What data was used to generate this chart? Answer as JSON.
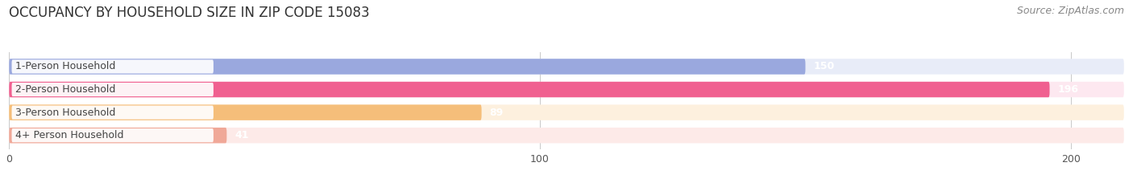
{
  "title": "OCCUPANCY BY HOUSEHOLD SIZE IN ZIP CODE 15083",
  "source": "Source: ZipAtlas.com",
  "categories": [
    "1-Person Household",
    "2-Person Household",
    "3-Person Household",
    "4+ Person Household"
  ],
  "values": [
    150,
    196,
    89,
    41
  ],
  "bar_colors": [
    "#9aa8de",
    "#f06090",
    "#f5be7a",
    "#f0a898"
  ],
  "bar_bg_colors": [
    "#e8ecf8",
    "#fde8f0",
    "#fdf0de",
    "#fdeae8"
  ],
  "xlim": [
    0,
    210
  ],
  "xticks": [
    0,
    100,
    200
  ],
  "title_fontsize": 12,
  "source_fontsize": 9,
  "label_fontsize": 9,
  "value_fontsize": 9,
  "background_color": "#ffffff",
  "bar_gap": 0.28,
  "bar_height": 0.68
}
